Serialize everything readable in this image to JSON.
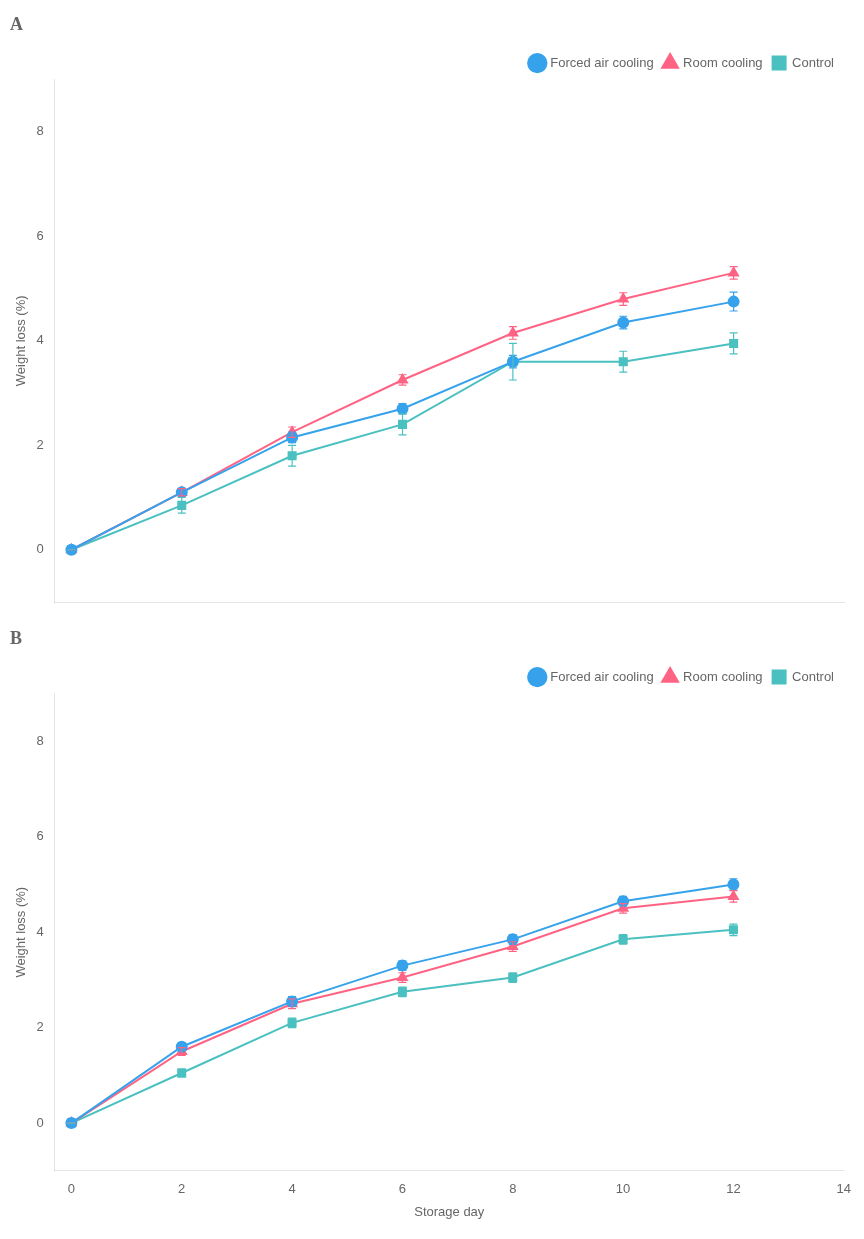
{
  "chart_data": [
    {
      "type": "line",
      "title": "A",
      "x": [
        0,
        2,
        4,
        6,
        8,
        10,
        12
      ],
      "series": [
        {
          "name": "Forced air cooling",
          "marker": "circle",
          "values": [
            0.0,
            1.1,
            2.15,
            2.7,
            3.6,
            4.35,
            4.75
          ],
          "errors": [
            0.0,
            0.07,
            0.1,
            0.1,
            0.12,
            0.12,
            0.18
          ]
        },
        {
          "name": "Room cooling",
          "marker": "triangle",
          "values": [
            0.0,
            1.1,
            2.25,
            3.25,
            4.15,
            4.8,
            5.3
          ],
          "errors": [
            0.0,
            0.07,
            0.1,
            0.1,
            0.12,
            0.12,
            0.12
          ]
        },
        {
          "name": "Control",
          "marker": "square",
          "values": [
            0.0,
            0.85,
            1.8,
            2.4,
            3.6,
            3.6,
            3.95
          ],
          "errors": [
            0.0,
            0.15,
            0.2,
            0.2,
            0.35,
            0.2,
            0.2
          ]
        }
      ],
      "xlim": [
        -0.3,
        14
      ],
      "xticks": [
        0,
        2,
        4,
        6,
        8,
        10,
        12,
        14
      ],
      "ylim": [
        -1,
        9
      ],
      "yticks": [
        0,
        2,
        4,
        6,
        8
      ],
      "ylabel": "Weight loss (%)",
      "grid": false,
      "legend": "upper right",
      "tick_labels": "y"
    },
    {
      "type": "line",
      "title": "B",
      "x": [
        0,
        2,
        4,
        6,
        8,
        10,
        12
      ],
      "series": [
        {
          "name": "Forced air cooling",
          "marker": "circle",
          "values": [
            0.0,
            1.6,
            2.55,
            3.3,
            3.85,
            4.65,
            5.0
          ],
          "errors": [
            0.0,
            0.08,
            0.1,
            0.1,
            0.1,
            0.1,
            0.12
          ]
        },
        {
          "name": "Room cooling",
          "marker": "triangle",
          "values": [
            0.0,
            1.5,
            2.5,
            3.05,
            3.7,
            4.5,
            4.75
          ],
          "errors": [
            0.0,
            0.08,
            0.1,
            0.1,
            0.1,
            0.1,
            0.12
          ]
        },
        {
          "name": "Control",
          "marker": "square",
          "values": [
            0.0,
            1.05,
            2.1,
            2.75,
            3.05,
            3.85,
            4.05
          ],
          "errors": [
            0.0,
            0.08,
            0.1,
            0.1,
            0.1,
            0.1,
            0.12
          ]
        }
      ],
      "xlim": [
        -0.3,
        14
      ],
      "xticks": [
        0,
        2,
        4,
        6,
        8,
        10,
        12,
        14
      ],
      "ylim": [
        -1,
        9
      ],
      "yticks": [
        0,
        2,
        4,
        6,
        8
      ],
      "xlabel": "Storage day",
      "ylabel": "Weight loss (%)",
      "grid": false,
      "legend": "upper right"
    }
  ]
}
